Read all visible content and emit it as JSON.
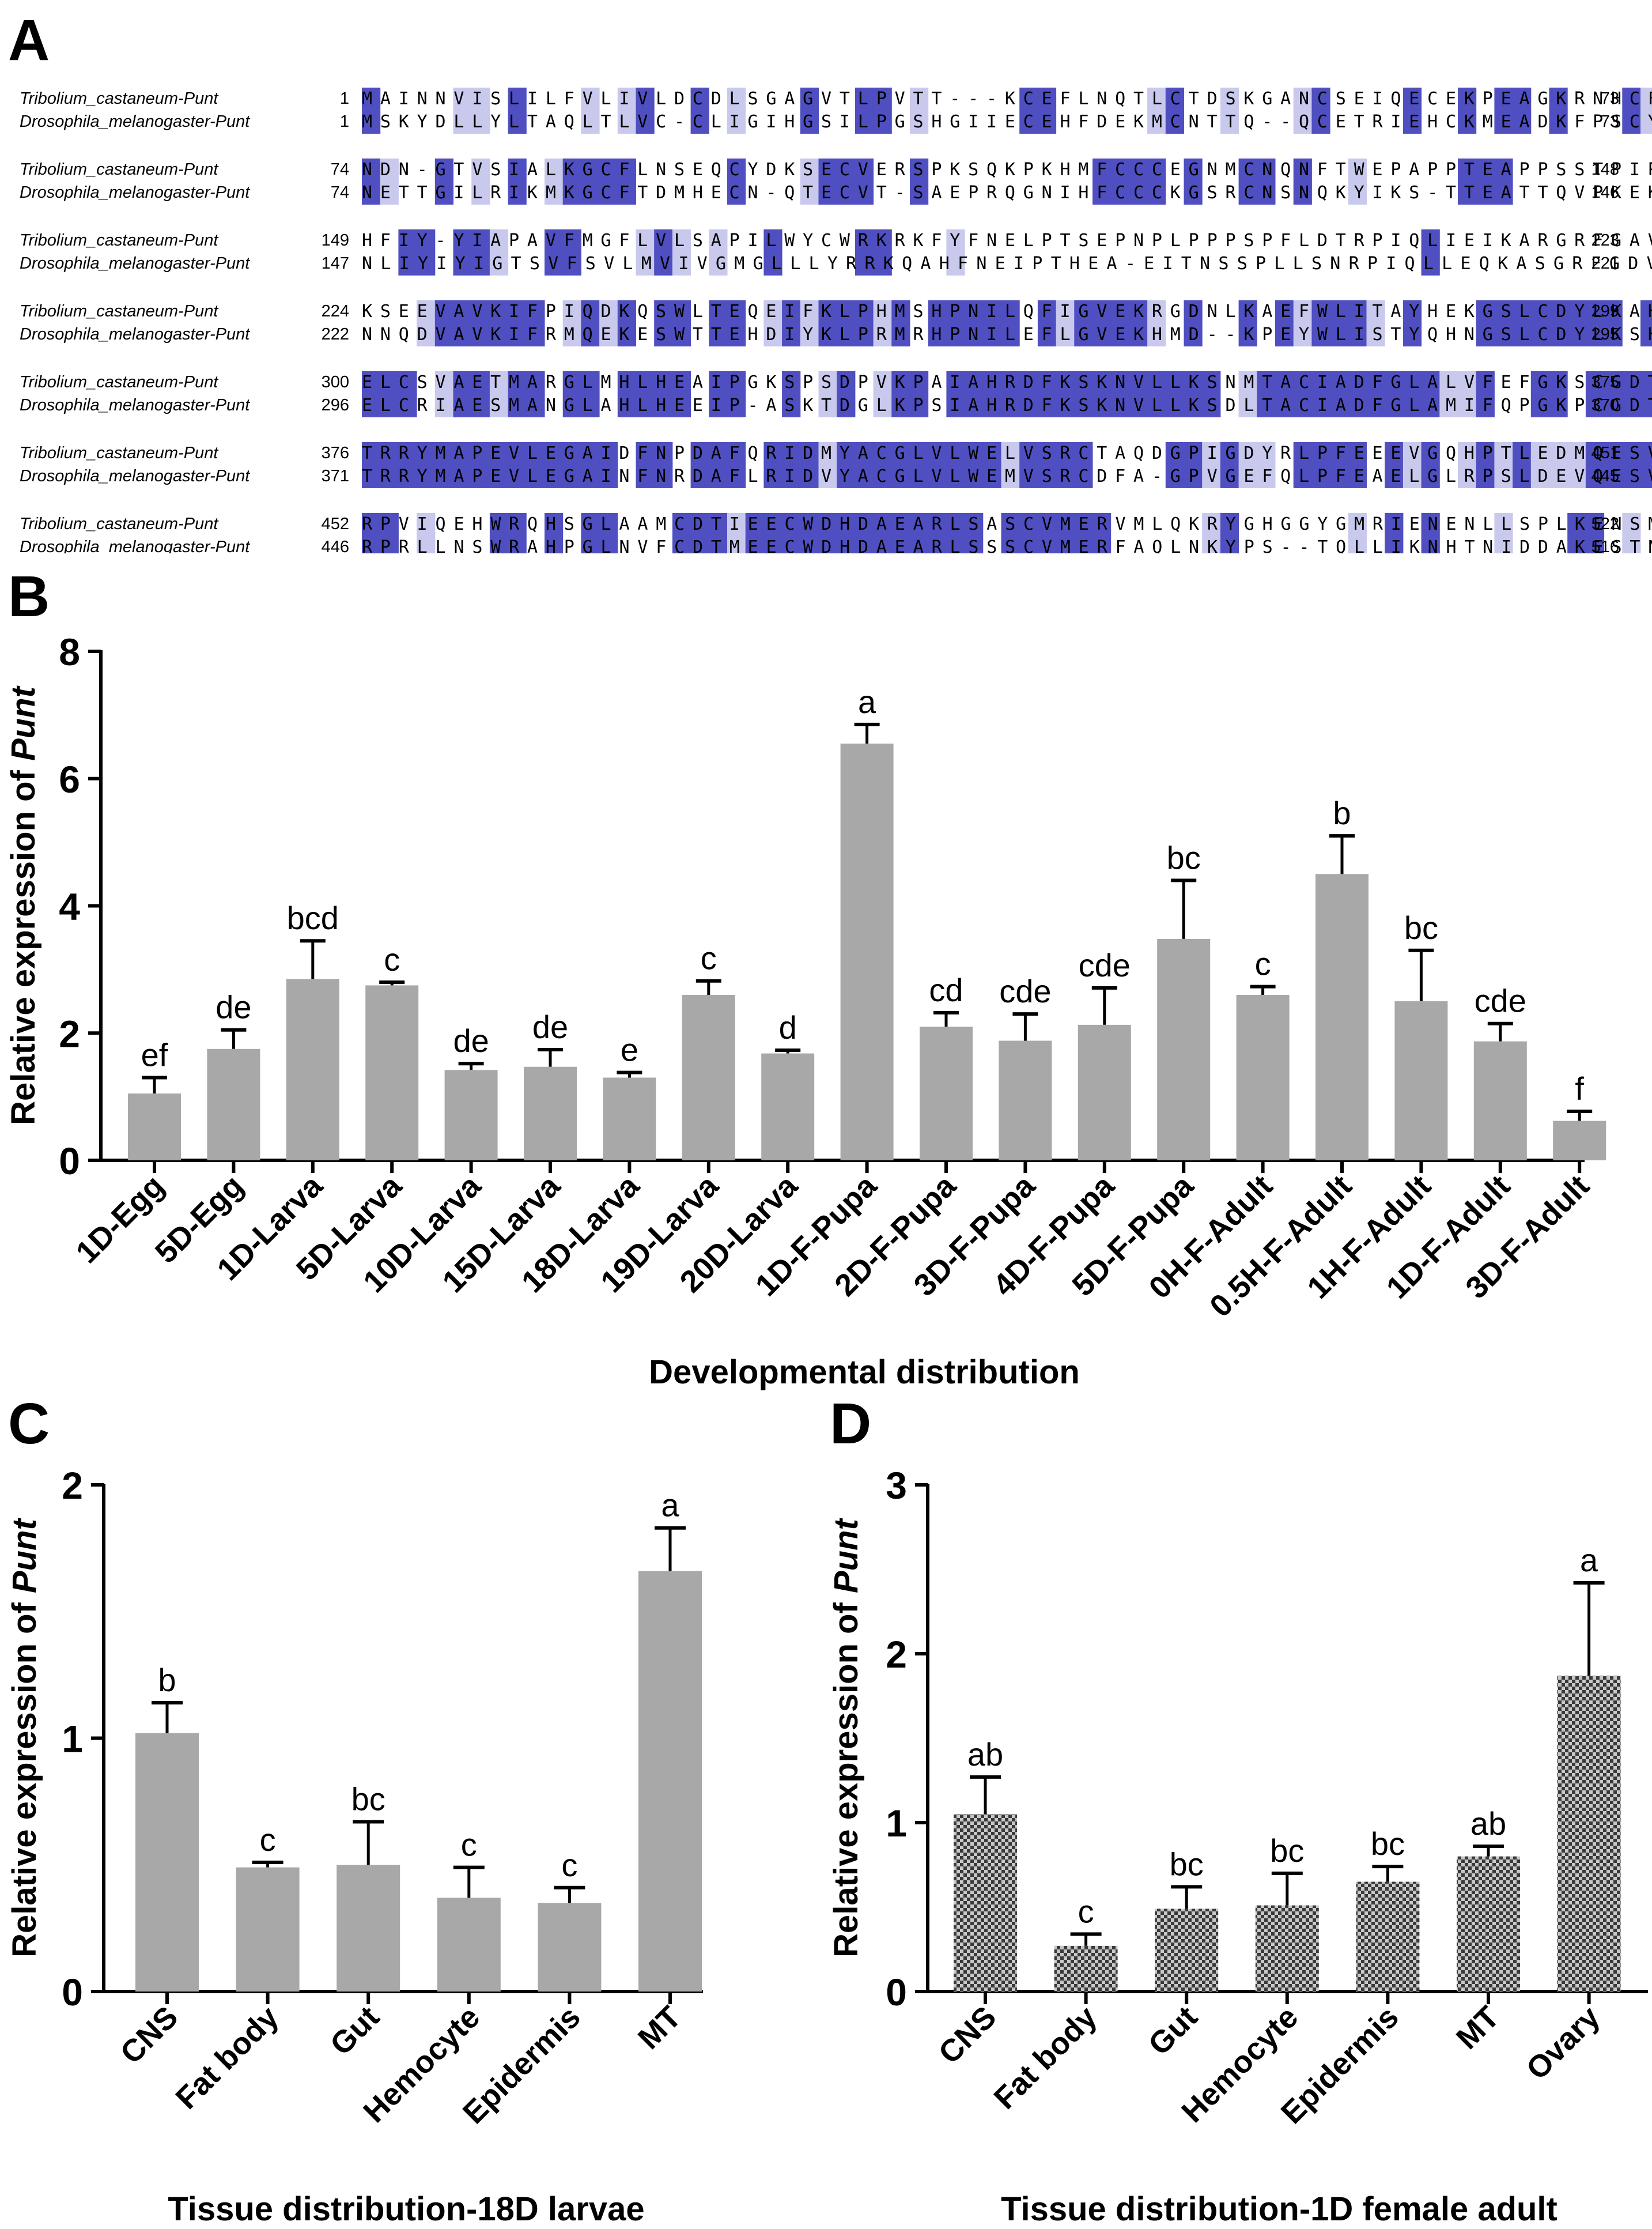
{
  "panels": {
    "A": "A",
    "B": "B",
    "C": "C",
    "D": "D"
  },
  "colors": {
    "identical": "#4f4fc1",
    "similar": "#c9c9ee",
    "bar_gray": "#a8a8a8",
    "bar_checker_dark": "#3a3a3a",
    "bar_checker_light": "#c8c8c8"
  },
  "alignment": {
    "blocks": [
      {
        "rows": [
          {
            "name": "Tribolium_castaneum-Punt",
            "start": "1",
            "end": "73",
            "seq": "MAINNVISLILFVLIVLDCDLSGAGVTLPVTT---KCEFLNQTLCTDSKGANCSEIQECEKPEAGKRNHCFVLWSW"
          },
          {
            "name": "Drosophila_melanogaster-Punt",
            "start": "1",
            "end": "73",
            "seq": "MSKYDLLYLTAQLTLVC-CLIGIHGSILPGSHGIIECEHFDEKMCNTTQ--QCETRIEHCKMEADKFPSCYVLWSV"
          }
        ]
      },
      {
        "rows": [
          {
            "name": "Tribolium_castaneum-Punt",
            "start": "74",
            "end": "148",
            "seq": "NDN-GTVSIALKGCFLNSEQCYDKSECVERSPKSQKPKHMFCCCEGNMCNQNFTWEPAPPTEAPPSSTPIPVVYNP"
          },
          {
            "name": "Drosophila_melanogaster-Punt",
            "start": "74",
            "end": "146",
            "seq": "NETTGILRIKMKGCFTDMHECN-QTECVT-SAEPRQGNIHFCCCKGSRCNSNQKYIKS-TTEATTQVPKEKTQDGS"
          }
        ]
      },
      {
        "rows": [
          {
            "name": "Tribolium_castaneum-Punt",
            "start": "149",
            "end": "223",
            "seq": "HFIY-YIAPAVFMGFLVLSAPILWYCWRKRKFYFNELPTSEPNPLPPPSPFLDTRPIQLIEIKARGRFGAVWKAQF"
          },
          {
            "name": "Drosophila_melanogaster-Punt",
            "start": "147",
            "end": "221",
            "seq": "NLIYIYIGTSVFSVLMVIVGMGLLLYRRKQAHFNEIPTHEA-EITNSSPLLSNRPIQLLEQKASGRFGDVWQAKL"
          }
        ]
      },
      {
        "rows": [
          {
            "name": "Tribolium_castaneum-Punt",
            "start": "224",
            "end": "299",
            "seq": "KSEEVAVKIFPIQDKQSWLTEQEIFKLPHMSHPNILQFIGVEKRGDNLKAEFWLITAYHEKGSLCDYLKAHTLTWN"
          },
          {
            "name": "Drosophila_melanogaster-Punt",
            "start": "222",
            "end": "295",
            "seq": "NNQDVAVKIFRMQEKESWTTEHDIYKLPRMRHPNILEFLGVEKHMD--KPEYWLISTYQHNGSLCDYLKSHTISWP"
          }
        ]
      },
      {
        "rows": [
          {
            "name": "Tribolium_castaneum-Punt",
            "start": "300",
            "end": "375",
            "seq": "ELCSVAETMARGLMHLHEAIPGKSPSDPVKPAIAHRDFKSKNVLLKSNMTACIADFGLALVFEFGKSCGDTHGQVG"
          },
          {
            "name": "Drosophila_melanogaster-Punt",
            "start": "296",
            "end": "370",
            "seq": "ELCRIAESMANGLAHLHEEIP-ASKTDGLKPSIAHRDFKSKNVLLKSDLTACIADFGLAMIFQPGKPCGDTHGQVG"
          }
        ]
      },
      {
        "rows": [
          {
            "name": "Tribolium_castaneum-Punt",
            "start": "376",
            "end": "451",
            "seq": "TRRYMAPEVLEGAIDFNPDAFQRIDMYACGLVLWELVSRCTAQDGPIGDYRLPFEEEVGQHPTLEDMQESVVQRKV"
          },
          {
            "name": "Drosophila_melanogaster-Punt",
            "start": "371",
            "end": "445",
            "seq": "TRRYMAPEVLEGAINFNRDAFLRIDVYACGLVLWEMVSRCDFA-GPVGEFQLPFEAELGLRPSLDEVQESVVMKKL"
          }
        ]
      },
      {
        "rows": [
          {
            "name": "Tribolium_castaneum-Punt",
            "start": "452",
            "end": "522",
            "seq": "RPVIQEHWRQHSGLAAMCDTIEECWDHDAEARLSASCVMERVMLQKRYGHGGYGMRIENENLLSPLKENSM--"
          },
          {
            "name": "Drosophila_melanogaster-Punt",
            "start": "446",
            "end": "516",
            "seq": "RPRLLNSWRAHPGLNVFCDTMEECWDHDAEARLSSSCVMERFAQLNKYPS--TQLLIKNHTNIDDAKESTNCL"
          }
        ]
      }
    ]
  },
  "chart_data": [
    {
      "id": "B",
      "type": "bar",
      "title": "",
      "xlabel": "Developmental distribution",
      "ylabel_prefix": "Relative expression of ",
      "ylabel_gene": "Punt",
      "ylim": [
        0,
        8
      ],
      "yticks": [
        "0",
        "2",
        "4",
        "6",
        "8"
      ],
      "categories": [
        "1D-Egg",
        "5D-Egg",
        "1D-Larva",
        "5D-Larva",
        "10D-Larva",
        "15D-Larva",
        "18D-Larva",
        "19D-Larva",
        "20D-Larva",
        "1D-F-Pupa",
        "2D-F-Pupa",
        "3D-F-Pupa",
        "4D-F-Pupa",
        "5D-F-Pupa",
        "0H-F-Adult",
        "0.5H-F-Adult",
        "1H-F-Adult",
        "1D-F-Adult",
        "3D-F-Adult"
      ],
      "values": [
        1.05,
        1.75,
        2.85,
        2.75,
        1.42,
        1.47,
        1.3,
        2.6,
        1.68,
        6.55,
        2.1,
        1.88,
        2.13,
        3.48,
        2.6,
        4.5,
        2.5,
        1.87,
        0.62
      ],
      "errors": [
        0.25,
        0.3,
        0.6,
        0.05,
        0.1,
        0.27,
        0.08,
        0.22,
        0.05,
        0.3,
        0.22,
        0.42,
        0.58,
        0.92,
        0.13,
        0.6,
        0.8,
        0.28,
        0.15
      ],
      "labels": [
        "ef",
        "de",
        "bcd",
        "c",
        "de",
        "de",
        "e",
        "c",
        "d",
        "a",
        "cd",
        "cde",
        "cde",
        "bc",
        "c",
        "b",
        "bc",
        "cde",
        "f"
      ],
      "pattern": "solid"
    },
    {
      "id": "C",
      "type": "bar",
      "title": "",
      "xlabel": "Tissue distribution-18D larvae",
      "ylabel_prefix": "Relative expression of ",
      "ylabel_gene": "Punt",
      "ylim": [
        0,
        2
      ],
      "yticks": [
        "0",
        "1",
        "2"
      ],
      "categories": [
        "CNS",
        "Fat body",
        "Gut",
        "Hemocyte",
        "Epidermis",
        "MT"
      ],
      "values": [
        1.02,
        0.49,
        0.5,
        0.37,
        0.35,
        1.66
      ],
      "errors": [
        0.12,
        0.02,
        0.17,
        0.12,
        0.06,
        0.17
      ],
      "labels": [
        "b",
        "c",
        "bc",
        "c",
        "c",
        "a"
      ],
      "pattern": "solid"
    },
    {
      "id": "D",
      "type": "bar",
      "title": "",
      "xlabel": "Tissue distribution-1D female adult",
      "ylabel_prefix": "Relative expression of ",
      "ylabel_gene": "Punt",
      "ylim": [
        0,
        3
      ],
      "yticks": [
        "0",
        "1",
        "2",
        "3"
      ],
      "categories": [
        "CNS",
        "Fat body",
        "Gut",
        "Hemocyte",
        "Epidermis",
        "MT",
        "Ovary"
      ],
      "values": [
        1.05,
        0.27,
        0.49,
        0.51,
        0.65,
        0.8,
        1.87
      ],
      "errors": [
        0.22,
        0.07,
        0.13,
        0.19,
        0.09,
        0.06,
        0.55
      ],
      "labels": [
        "ab",
        "c",
        "bc",
        "bc",
        "bc",
        "ab",
        "a"
      ],
      "pattern": "checker"
    }
  ]
}
